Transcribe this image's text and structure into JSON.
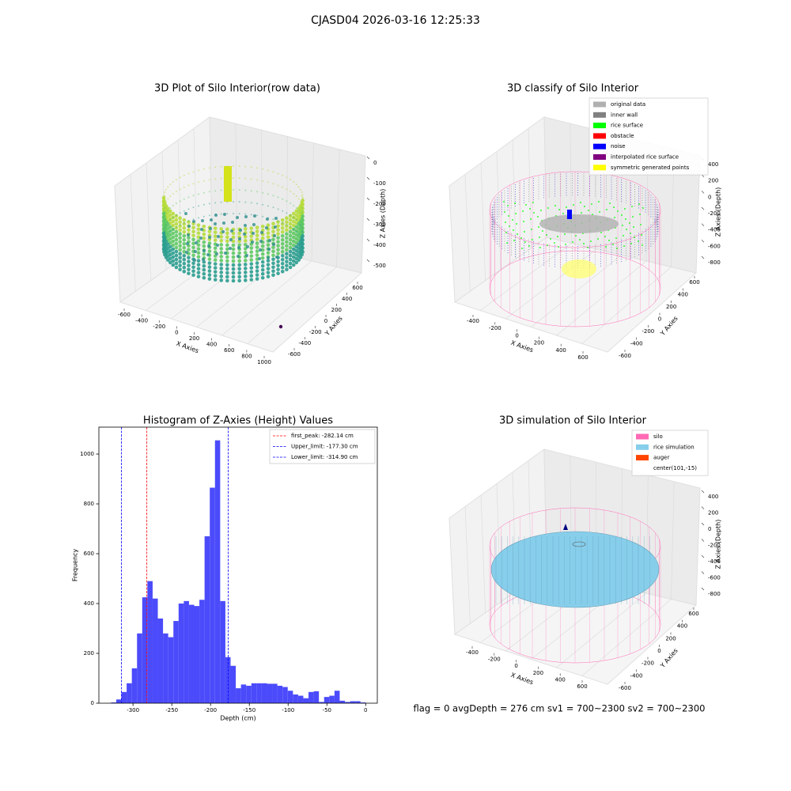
{
  "title": "CJASD04 2026-03-16 12:25:33",
  "footer": "flag = 0     avgDepth = 276 cm  sv1 = 700~2300  sv2 = 700~2300",
  "chart_data": [
    {
      "type": "scatter3d",
      "title": "3D Plot of Silo Interior(row data)",
      "xlabel": "X Axies",
      "ylabel": "Y Axies",
      "zlabel": "Z Axies (Depth)",
      "xticks": [
        -600,
        -400,
        -200,
        0,
        200,
        400,
        600,
        800,
        1000
      ],
      "yticks": [
        -600,
        -400,
        -200,
        0,
        200,
        400,
        600
      ],
      "zticks": [
        0,
        -100,
        -200,
        -300,
        -400,
        -500
      ]
    },
    {
      "type": "scatter3d",
      "title": "3D classify of Silo Interior",
      "xlabel": "X Axies",
      "ylabel": "Y Axies",
      "zlabel": "Z Axies (Depth)",
      "xticks": [
        -400,
        -200,
        0,
        200,
        400,
        600
      ],
      "yticks": [
        -600,
        -400,
        -200,
        0,
        200,
        400,
        600
      ],
      "zticks": [
        400,
        200,
        0,
        -200,
        -400,
        -600,
        -800
      ],
      "series": [
        {
          "name": "original data",
          "color": "#b0b0b0"
        },
        {
          "name": "inner wall",
          "color": "#808080"
        },
        {
          "name": "rice surface",
          "color": "#00ff00"
        },
        {
          "name": "obstacle",
          "color": "#ff0000"
        },
        {
          "name": "noise",
          "color": "#0000ff"
        },
        {
          "name": "interpolated rice surface",
          "color": "#800080"
        },
        {
          "name": "symmetric generated points",
          "color": "#ffff00"
        }
      ]
    },
    {
      "type": "histogram",
      "title": "Histogram of Z-Axies (Height) Values",
      "xlabel": "Depth (cm)",
      "ylabel": "Frequency",
      "color": "#4b4bfb",
      "bins": [
        -328.3,
        -321.6,
        -314.9,
        -308.2,
        -301.5,
        -294.8,
        -288.1,
        -281.4,
        -274.7,
        -268.0,
        -261.3,
        -254.6,
        -247.9,
        -241.2,
        -234.5,
        -227.8,
        -221.1,
        -214.4,
        -207.7,
        -201.0,
        -194.3,
        -187.6,
        -180.9,
        -174.2,
        -167.5,
        -160.8,
        -154.1,
        -147.4,
        -140.7,
        -134.0,
        -127.3,
        -120.6,
        -113.9,
        -107.2,
        -100.5,
        -93.8,
        -87.1,
        -80.4,
        -73.7,
        -67.0,
        -60.3,
        -53.6,
        -46.9,
        -40.2,
        -33.5,
        -26.8,
        -20.1,
        -13.4,
        -6.7,
        0
      ],
      "values": [
        3,
        15,
        45,
        80,
        140,
        280,
        425,
        490,
        420,
        340,
        280,
        265,
        330,
        400,
        410,
        395,
        390,
        415,
        670,
        865,
        1055,
        410,
        185,
        150,
        60,
        75,
        70,
        80,
        80,
        80,
        78,
        78,
        70,
        65,
        50,
        35,
        30,
        20,
        45,
        48,
        5,
        25,
        30,
        50,
        10,
        5,
        8,
        8,
        3
      ],
      "xlim": [
        -344,
        15
      ],
      "ylim": [
        0,
        1108
      ],
      "xticks": [
        -300,
        -250,
        -200,
        -150,
        -100,
        -50,
        0
      ],
      "yticks": [
        0,
        200,
        400,
        600,
        800,
        1000
      ],
      "vlines": [
        {
          "name": "first_peak: -282.14 cm",
          "value": -282.14,
          "color": "#ff0000"
        },
        {
          "name": "Upper_limit: -177.30 cm",
          "value": -177.3,
          "color": "#0000ff"
        },
        {
          "name": "Lower_limit: -314.90 cm",
          "value": -314.9,
          "color": "#0000ff"
        }
      ]
    },
    {
      "type": "scatter3d",
      "title": "3D simulation of Silo Interior",
      "xlabel": "X Axies",
      "ylabel": "Y Axies",
      "zlabel": "Z Axies (Depth)",
      "xticks": [
        -400,
        -200,
        0,
        200,
        400,
        600
      ],
      "yticks": [
        -600,
        -400,
        -200,
        0,
        200,
        400,
        600
      ],
      "zticks": [
        400,
        200,
        0,
        -200,
        -400,
        -600,
        -800
      ],
      "series": [
        {
          "name": "silo",
          "color": "#ff69b4"
        },
        {
          "name": "rice simulation",
          "color": "#87ceeb"
        },
        {
          "name": "auger",
          "color": "#ff4500"
        },
        {
          "name": "center(101,-15)",
          "color": null
        }
      ]
    }
  ]
}
